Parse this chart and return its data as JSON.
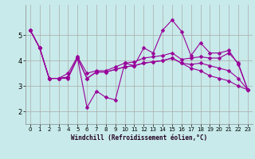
{
  "xlabel": "Windchill (Refroidissement éolien,°C)",
  "background_color": "#c8eaea",
  "line_color": "#990099",
  "grid_color": "#aaaaaa",
  "xlim": [
    -0.5,
    23.5
  ],
  "ylim": [
    1.5,
    6.2
  ],
  "yticks": [
    2,
    3,
    4,
    5
  ],
  "xticks": [
    0,
    1,
    2,
    3,
    4,
    5,
    6,
    7,
    8,
    9,
    10,
    11,
    12,
    13,
    14,
    15,
    16,
    17,
    18,
    19,
    20,
    21,
    22,
    23
  ],
  "series": [
    [
      5.2,
      4.5,
      3.3,
      3.3,
      3.3,
      4.1,
      2.15,
      2.8,
      2.55,
      2.45,
      3.9,
      3.8,
      4.5,
      4.3,
      5.2,
      5.6,
      5.15,
      4.2,
      4.7,
      4.3,
      4.3,
      4.4,
      3.85,
      2.85
    ],
    [
      5.2,
      4.5,
      3.3,
      3.3,
      3.5,
      4.15,
      3.5,
      3.6,
      3.6,
      3.75,
      3.9,
      3.95,
      4.1,
      4.15,
      4.2,
      4.3,
      4.05,
      4.1,
      4.15,
      4.1,
      4.1,
      4.3,
      3.9,
      2.85
    ],
    [
      5.2,
      4.5,
      3.3,
      3.3,
      3.35,
      4.1,
      3.3,
      3.55,
      3.55,
      3.65,
      3.75,
      3.8,
      3.9,
      3.95,
      4.0,
      4.1,
      3.9,
      3.85,
      3.9,
      3.8,
      3.7,
      3.6,
      3.3,
      2.85
    ],
    [
      5.2,
      4.5,
      3.3,
      3.3,
      3.35,
      4.1,
      3.3,
      3.55,
      3.55,
      3.65,
      3.75,
      3.8,
      3.9,
      3.95,
      4.0,
      4.1,
      3.9,
      3.7,
      3.6,
      3.4,
      3.3,
      3.2,
      3.0,
      2.85
    ]
  ],
  "figsize": [
    3.2,
    2.0
  ],
  "dpi": 100,
  "xlabel_fontsize": 5.5,
  "tick_labelsize": 5,
  "ytick_labelsize": 6,
  "linewidth": 0.8,
  "markersize": 2.5
}
